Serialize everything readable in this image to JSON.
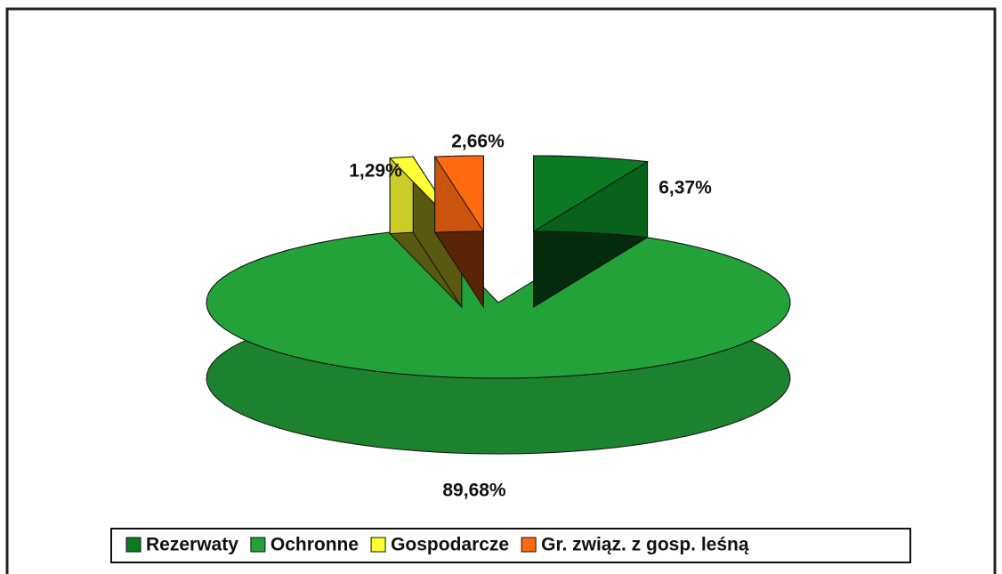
{
  "chart_data": {
    "type": "pie3d",
    "categories": [
      "Rezerwaty",
      "Ochronne",
      "Gospodarcze",
      "Gr. związ. z gosp. leśną"
    ],
    "values": [
      6.37,
      89.68,
      1.29,
      2.66
    ],
    "value_labels": [
      "6,37%",
      "89,68%",
      "1,29%",
      "2,66%"
    ],
    "colors": [
      "#0b7a22",
      "#24a23a",
      "#ffff33",
      "#ff6a10"
    ],
    "legend": "bottom"
  }
}
